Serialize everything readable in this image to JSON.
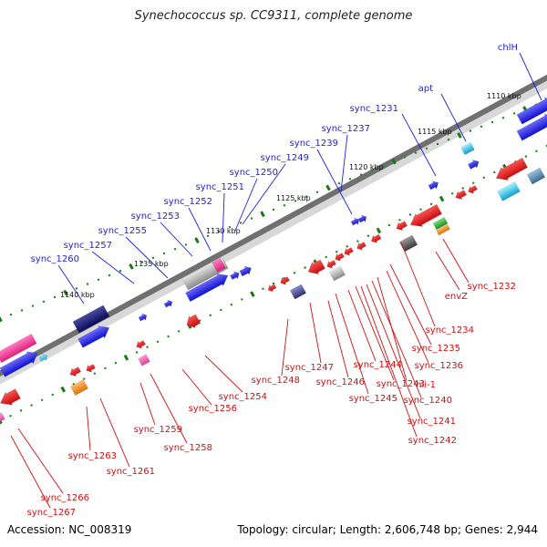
{
  "title": "Synechococcus sp. CC9311, complete genome",
  "footer": {
    "accession": "Accession: NC_008319",
    "topology": "Topology: circular; Length: 2,606,748 bp; Genes: 2,944"
  },
  "colors": {
    "backbone": "#707070",
    "forward_label": "#1f1fdf",
    "reverse_label": "#d01010",
    "tick_dot": "#1a8a1a"
  },
  "scale_labels": [
    "1110 kbp",
    "1115 kbp",
    "1120 kbp",
    "1125 kbp",
    "1130 kbp",
    "1135 kbp",
    "1140 kbp"
  ],
  "forward_genes": [
    "chlH",
    "apt",
    "sync_1231",
    "sync_1237",
    "sync_1239",
    "sync_1249",
    "sync_1250",
    "sync_1251",
    "sync_1252",
    "sync_1253",
    "sync_1255",
    "sync_1257",
    "sync_1260"
  ],
  "reverse_genes": [
    "sync_1232",
    "envZ",
    "sync_1234",
    "sync_1235",
    "sync_1236",
    "hli-1",
    "sync_1240",
    "sync_1241",
    "sync_1242",
    "sync_1243",
    "sync_1244",
    "sync_1245",
    "sync_1246",
    "sync_1247",
    "sync_1248",
    "sync_1254",
    "sync_1256",
    "sync_1258",
    "sync_1259",
    "sync_1261",
    "sync_1263",
    "sync_1266",
    "sync_1267"
  ]
}
